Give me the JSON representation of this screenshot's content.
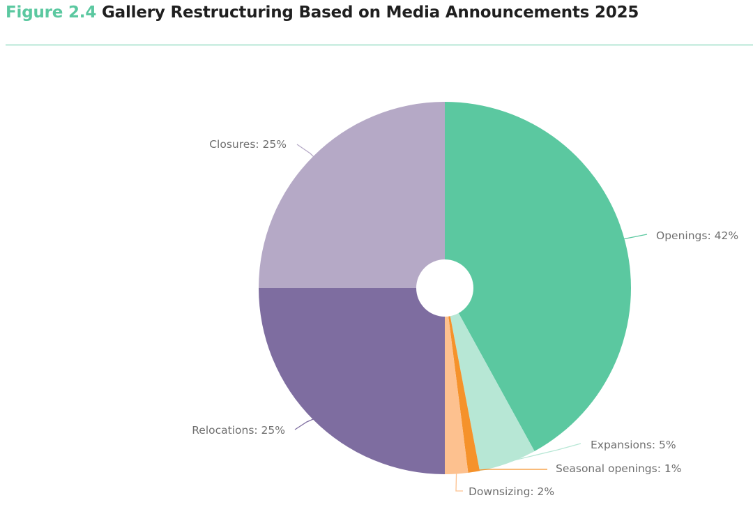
{
  "figure": {
    "number": "Figure 2.4",
    "title": "Gallery Restructuring Based on Media Announcements 2025"
  },
  "chart_data": {
    "type": "pie",
    "title": "Gallery Restructuring Based on Media Announcements 2025",
    "donut_hole": true,
    "slices": [
      {
        "name": "Openings",
        "value": 42,
        "label": "Openings: 42%",
        "color": "#5bc8a0"
      },
      {
        "name": "Expansions",
        "value": 5,
        "label": "Expansions: 5%",
        "color": "#b7e7d5"
      },
      {
        "name": "Seasonal openings",
        "value": 1,
        "label": "Seasonal openings: 1%",
        "color": "#f5922b"
      },
      {
        "name": "Downsizing",
        "value": 2,
        "label": "Downsizing: 2%",
        "color": "#fdc18f"
      },
      {
        "name": "Relocations",
        "value": 25,
        "label": "Relocations: 25%",
        "color": "#7e6da0"
      },
      {
        "name": "Closures",
        "value": 25,
        "label": "Closures: 25%",
        "color": "#b5a9c6"
      }
    ]
  }
}
